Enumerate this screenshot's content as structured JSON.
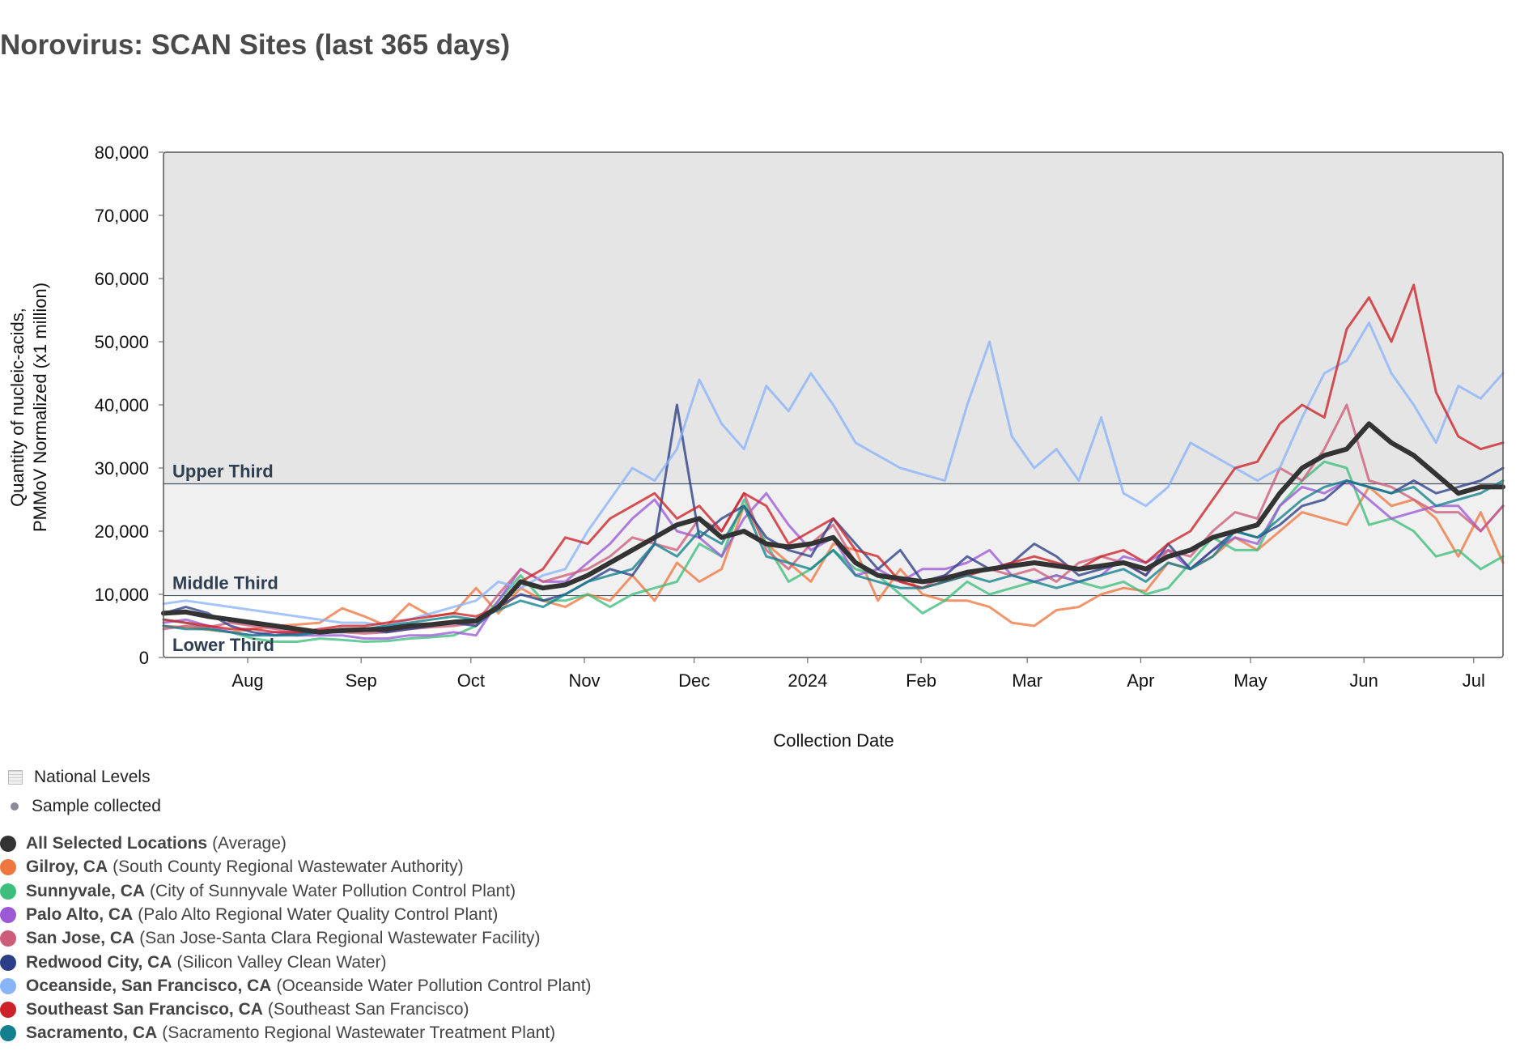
{
  "chart_data": {
    "type": "line",
    "title": "Norovirus: SCAN Sites (last 365 days)",
    "xlabel": "Collection Date",
    "ylabel_lines": [
      "Quantity of nucleic-acids,",
      "PMMoV Normalized (x1 million)"
    ],
    "ylim": [
      0,
      80000
    ],
    "y_ticks": [
      {
        "value": 0,
        "label": "0"
      },
      {
        "value": 10000,
        "label": "10,000"
      },
      {
        "value": 20000,
        "label": "20,000"
      },
      {
        "value": 30000,
        "label": "30,000"
      },
      {
        "value": 40000,
        "label": "40,000"
      },
      {
        "value": 50000,
        "label": "50,000"
      },
      {
        "value": 60000,
        "label": "60,000"
      },
      {
        "value": 70000,
        "label": "70,000"
      },
      {
        "value": 80000,
        "label": "80,000"
      }
    ],
    "x_start": "2023-07-09",
    "x_end": "2024-07-09",
    "x_ticks": [
      {
        "date": "2023-08-01",
        "label": "Aug"
      },
      {
        "date": "2023-09-01",
        "label": "Sep"
      },
      {
        "date": "2023-10-01",
        "label": "Oct"
      },
      {
        "date": "2023-11-01",
        "label": "Nov"
      },
      {
        "date": "2023-12-01",
        "label": "Dec"
      },
      {
        "date": "2024-01-01",
        "label": "2024"
      },
      {
        "date": "2024-02-01",
        "label": "Feb"
      },
      {
        "date": "2024-03-01",
        "label": "Mar"
      },
      {
        "date": "2024-04-01",
        "label": "Apr"
      },
      {
        "date": "2024-05-01",
        "label": "May"
      },
      {
        "date": "2024-06-01",
        "label": "Jun"
      },
      {
        "date": "2024-07-01",
        "label": "Jul"
      }
    ],
    "bands": [
      {
        "label": "Lower Third",
        "from": 0,
        "to": 9800,
        "color": "#ffffff"
      },
      {
        "label": "Middle Third",
        "from": 9800,
        "to": 27500,
        "color": "#f0f0f0"
      },
      {
        "label": "Upper Third",
        "from": 27500,
        "to": 80000,
        "color": "#e5e5e5"
      }
    ],
    "series": [
      {
        "id": "gilroy",
        "name": "Gilroy, CA",
        "color": "#ee7740",
        "values": [
          5000,
          4800,
          4400,
          4000,
          4500,
          5000,
          5200,
          5500,
          7800,
          6500,
          5000,
          8500,
          6500,
          7000,
          11000,
          7000,
          11000,
          9000,
          8000,
          10000,
          9000,
          13000,
          9000,
          15000,
          12000,
          14000,
          24000,
          18000,
          15000,
          12000,
          18000,
          17000,
          9000,
          14000,
          10000,
          9000,
          9000,
          8000,
          5500,
          5000,
          7500,
          8000,
          10000,
          11000,
          10500,
          15000,
          14000,
          16000,
          19000,
          17000,
          20000,
          23000,
          22000,
          21000,
          27000,
          24000,
          25000,
          22000,
          16000,
          23000,
          15000
        ]
      },
      {
        "id": "sunnyvale",
        "name": "Sunnyvale, CA",
        "color": "#3dbe7c",
        "values": [
          6000,
          5500,
          4500,
          4000,
          3000,
          2500,
          2500,
          3000,
          2800,
          2500,
          2600,
          3000,
          3200,
          3500,
          5000,
          9000,
          13000,
          9000,
          9000,
          10000,
          8000,
          10000,
          11000,
          12000,
          18000,
          16000,
          25000,
          18000,
          12000,
          14000,
          17000,
          14000,
          13000,
          10000,
          7000,
          9000,
          12000,
          10000,
          11000,
          12000,
          13000,
          12000,
          11000,
          12000,
          10000,
          11000,
          15000,
          19000,
          17000,
          17000,
          24000,
          28000,
          31000,
          30000,
          21000,
          22000,
          20000,
          16000,
          17000,
          14000,
          16000
        ]
      },
      {
        "id": "paloalto",
        "name": "Palo Alto, CA",
        "color": "#9b59d6",
        "values": [
          5500,
          6000,
          5000,
          4000,
          3500,
          4000,
          3500,
          3500,
          3500,
          3000,
          3000,
          3500,
          3500,
          4000,
          3500,
          9000,
          14000,
          12000,
          12000,
          15000,
          18000,
          22000,
          25000,
          20000,
          19000,
          16000,
          22000,
          26000,
          21000,
          17000,
          19000,
          13000,
          14000,
          12000,
          14000,
          14000,
          15000,
          17000,
          13000,
          12000,
          13000,
          12000,
          13000,
          16000,
          15000,
          17000,
          14000,
          17000,
          19000,
          18000,
          24000,
          27000,
          26000,
          28000,
          25000,
          22000,
          23000,
          24000,
          24000,
          20000,
          24000
        ]
      },
      {
        "id": "sanjose",
        "name": "San Jose, CA",
        "color": "#cc5c7a",
        "values": [
          4500,
          5000,
          4800,
          5500,
          5000,
          4500,
          4000,
          4000,
          4000,
          3800,
          4000,
          4500,
          4800,
          5000,
          5500,
          10000,
          14000,
          12000,
          13000,
          14000,
          16000,
          19000,
          18000,
          17000,
          22000,
          20000,
          26000,
          17000,
          14000,
          18000,
          21000,
          15000,
          13000,
          12000,
          11000,
          13000,
          13000,
          14000,
          13000,
          14000,
          12000,
          15000,
          16000,
          15000,
          13000,
          17000,
          16000,
          20000,
          23000,
          22000,
          30000,
          28000,
          33000,
          40000,
          28000,
          27000,
          25000,
          23000,
          23000,
          20000,
          24000
        ]
      },
      {
        "id": "redwood",
        "name": "Redwood City, CA",
        "color": "#2c3f86",
        "values": [
          7000,
          8000,
          7000,
          5000,
          4000,
          3500,
          3800,
          4000,
          4500,
          4500,
          4000,
          4500,
          5000,
          5500,
          5000,
          8000,
          10000,
          9000,
          10000,
          12000,
          14000,
          13000,
          18000,
          40000,
          19000,
          22000,
          24000,
          19000,
          17000,
          16000,
          22000,
          18000,
          14000,
          17000,
          12000,
          13000,
          16000,
          14000,
          15000,
          18000,
          16000,
          13000,
          14000,
          15000,
          13000,
          18000,
          14000,
          17000,
          20000,
          19000,
          21000,
          24000,
          25000,
          28000,
          27000,
          26000,
          28000,
          26000,
          27000,
          28000,
          30000
        ]
      },
      {
        "id": "oceanside",
        "name": "Oceanside, San Francisco, CA",
        "color": "#8ab4f8",
        "values": [
          8500,
          9000,
          8500,
          8000,
          7500,
          7000,
          6500,
          6000,
          5500,
          5500,
          5000,
          6000,
          7000,
          8000,
          9000,
          12000,
          11000,
          13000,
          14000,
          20000,
          25000,
          30000,
          28000,
          33000,
          44000,
          37000,
          33000,
          43000,
          39000,
          45000,
          40000,
          34000,
          32000,
          30000,
          29000,
          28000,
          40000,
          50000,
          35000,
          30000,
          33000,
          28000,
          38000,
          26000,
          24000,
          27000,
          34000,
          32000,
          30000,
          28000,
          30000,
          38000,
          45000,
          47000,
          53000,
          45000,
          40000,
          34000,
          43000,
          41000,
          45000
        ]
      },
      {
        "id": "southeast",
        "name": "Southeast San Francisco, CA",
        "color": "#cc2229",
        "values": [
          6000,
          5500,
          5000,
          4500,
          4500,
          4000,
          4000,
          4500,
          5000,
          5000,
          5500,
          6000,
          6500,
          7000,
          6500,
          8000,
          12000,
          14000,
          19000,
          18000,
          22000,
          24000,
          26000,
          22000,
          24000,
          20000,
          26000,
          24000,
          18000,
          20000,
          22000,
          17000,
          16000,
          12000,
          11000,
          12000,
          13000,
          14000,
          15000,
          16000,
          15000,
          14000,
          16000,
          17000,
          15000,
          18000,
          20000,
          25000,
          30000,
          31000,
          37000,
          40000,
          38000,
          52000,
          57000,
          50000,
          59000,
          42000,
          35000,
          33000,
          34000
        ]
      },
      {
        "id": "sacramento",
        "name": "Sacramento, CA",
        "color": "#12808c",
        "values": [
          5000,
          4500,
          4500,
          4000,
          3500,
          3500,
          3500,
          4000,
          4000,
          4500,
          5000,
          5500,
          6000,
          6500,
          6000,
          7500,
          9000,
          8000,
          10000,
          12000,
          13000,
          14000,
          18000,
          16000,
          20000,
          18000,
          24000,
          16000,
          15000,
          14000,
          17000,
          13000,
          12000,
          11000,
          11000,
          12000,
          13000,
          12000,
          13000,
          12000,
          11000,
          12000,
          13000,
          14000,
          12000,
          15000,
          14000,
          16000,
          20000,
          19000,
          22000,
          25000,
          27000,
          28000,
          27000,
          26000,
          27000,
          24000,
          25000,
          26000,
          28000
        ]
      },
      {
        "id": "average",
        "name": "All Selected Locations",
        "color": "#333333",
        "values": [
          7000,
          7200,
          6500,
          6000,
          5500,
          5000,
          4500,
          4000,
          4300,
          4400,
          4500,
          5000,
          5200,
          5600,
          5800,
          8000,
          12000,
          11000,
          11500,
          13000,
          15000,
          17000,
          19000,
          21000,
          22000,
          19000,
          20000,
          18000,
          17500,
          18000,
          19000,
          15000,
          13000,
          12500,
          12000,
          12500,
          13500,
          14000,
          14500,
          15000,
          14500,
          14000,
          14500,
          15000,
          14000,
          16000,
          17000,
          19000,
          20000,
          21000,
          26000,
          30000,
          32000,
          33000,
          37000,
          34000,
          32000,
          29000,
          26000,
          27000,
          27000
        ]
      }
    ]
  },
  "legend": {
    "national_levels": "National Levels",
    "sample_collected": "Sample collected",
    "items": [
      {
        "name": "All Selected Locations",
        "desc": "(Average)",
        "color": "#333333"
      },
      {
        "name": "Gilroy, CA",
        "desc": "(South County Regional Wastewater Authority)",
        "color": "#ee7740"
      },
      {
        "name": "Sunnyvale, CA",
        "desc": "(City of Sunnyvale Water Pollution Control Plant)",
        "color": "#3dbe7c"
      },
      {
        "name": "Palo Alto, CA",
        "desc": "(Palo Alto Regional Water Quality Control Plant)",
        "color": "#9b59d6"
      },
      {
        "name": "San Jose, CA",
        "desc": "(San Jose-Santa Clara Regional Wastewater Facility)",
        "color": "#cc5c7a"
      },
      {
        "name": "Redwood City, CA",
        "desc": "(Silicon Valley Clean Water)",
        "color": "#2c3f86"
      },
      {
        "name": "Oceanside, San Francisco, CA",
        "desc": "(Oceanside Water Pollution Control Plant)",
        "color": "#8ab4f8"
      },
      {
        "name": "Southeast San Francisco, CA",
        "desc": "(Southeast San Francisco)",
        "color": "#cc2229"
      },
      {
        "name": "Sacramento, CA",
        "desc": "(Sacramento Regional Wastewater Treatment Plant)",
        "color": "#12808c"
      }
    ]
  }
}
